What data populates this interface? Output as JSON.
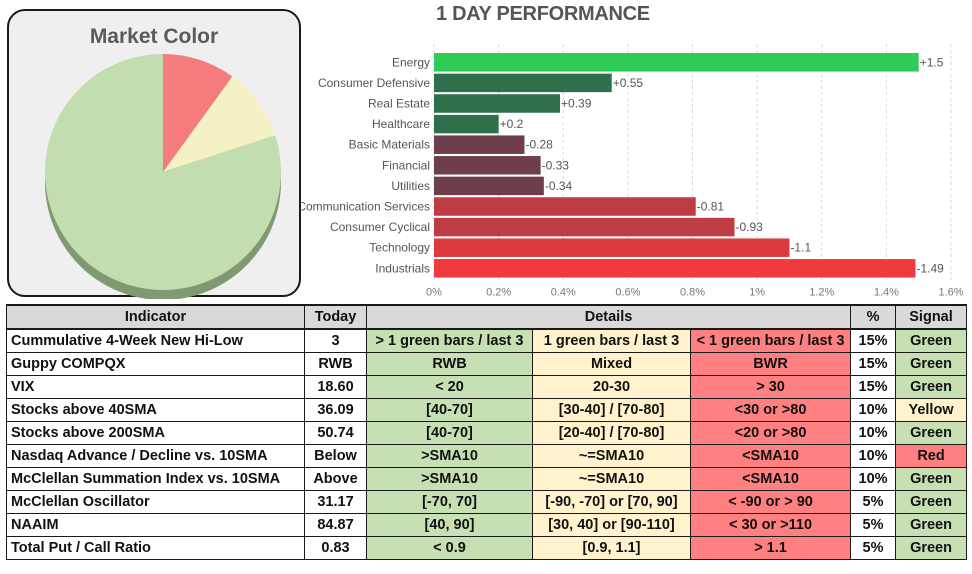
{
  "pie": {
    "title": "Market Color",
    "chart_data": {
      "type": "pie",
      "title": "Market Color",
      "slices": [
        {
          "name": "Red",
          "value": 10,
          "color": "#f47c7c"
        },
        {
          "name": "Yellow",
          "value": 10,
          "color": "#f4f2c4"
        },
        {
          "name": "Green",
          "value": 80,
          "color": "#c2ddb0"
        }
      ]
    }
  },
  "chart_data": {
    "type": "bar",
    "orientation": "horizontal",
    "title": "1 DAY PERFORMANCE",
    "categories": [
      "Energy",
      "Consumer Defensive",
      "Real Estate",
      "Healthcare",
      "Basic Materials",
      "Financial",
      "Utilities",
      "Communication Services",
      "Consumer Cyclical",
      "Technology",
      "Industrials"
    ],
    "values": [
      1.5,
      0.55,
      0.39,
      0.2,
      -0.28,
      -0.33,
      -0.34,
      -0.81,
      -0.93,
      -1.1,
      -1.49
    ],
    "value_labels": [
      "+1.5",
      "+0.55",
      "+0.39",
      "+0.2",
      "-0.28",
      "-0.33",
      "-0.34",
      "-0.81",
      "-0.93",
      "-1.1",
      "-1.49"
    ],
    "colors": [
      "#2ecc55",
      "#2e6f4c",
      "#2e6f4c",
      "#2e6f4c",
      "#6e3f4a",
      "#6e3f4a",
      "#6e3f4a",
      "#bf3c44",
      "#bf3c44",
      "#dc3a3f",
      "#f03a3d"
    ],
    "xaxis_ticks": [
      "0%",
      "0.2%",
      "0.4%",
      "0.6%",
      "0.8%",
      "1%",
      "1.2%",
      "1.4%",
      "1.6%"
    ],
    "xlim": [
      0,
      1.6
    ],
    "grid": true
  },
  "table": {
    "headers": {
      "indicator": "Indicator",
      "today": "Today",
      "details": "Details",
      "pct": "%",
      "signal": "Signal"
    },
    "rows": [
      {
        "indicator": "Cummulative 4-Week New Hi-Low",
        "today": "3",
        "green": "> 1 green bars / last 3",
        "yellow": "1 green bars / last 3",
        "red": "< 1 green bars / last 3",
        "pct": "15%",
        "signal": "Green"
      },
      {
        "indicator": "Guppy COMPQX",
        "today": "RWB",
        "green": "RWB",
        "yellow": "Mixed",
        "red": "BWR",
        "pct": "15%",
        "signal": "Green"
      },
      {
        "indicator": "VIX",
        "today": "18.60",
        "green": "< 20",
        "yellow": "20-30",
        "red": "> 30",
        "pct": "15%",
        "signal": "Green"
      },
      {
        "indicator": "Stocks above 40SMA",
        "today": "36.09",
        "green": "[40-70]",
        "yellow": "[30-40] / [70-80]",
        "red": "<30 or >80",
        "pct": "10%",
        "signal": "Yellow"
      },
      {
        "indicator": "Stocks above 200SMA",
        "today": "50.74",
        "green": "[40-70]",
        "yellow": "[20-40] / [70-80]",
        "red": "<20 or >80",
        "pct": "10%",
        "signal": "Green"
      },
      {
        "indicator": "Nasdaq Advance / Decline vs. 10SMA",
        "today": "Below",
        "green": ">SMA10",
        "yellow": "~=SMA10",
        "red": "<SMA10",
        "pct": "10%",
        "signal": "Red"
      },
      {
        "indicator": "McClellan Summation Index vs. 10SMA",
        "today": "Above",
        "green": ">SMA10",
        "yellow": "~=SMA10",
        "red": "<SMA10",
        "pct": "10%",
        "signal": "Green"
      },
      {
        "indicator": "McClellan Oscillator",
        "today": "31.17",
        "green": "[-70, 70]",
        "yellow": "[-90, -70] or [70, 90]",
        "red": "< -90 or > 90",
        "pct": "5%",
        "signal": "Green"
      },
      {
        "indicator": "NAAIM",
        "today": "84.87",
        "green": "[40, 90]",
        "yellow": "[30, 40] or [90-110]",
        "red": "< 30 or >110",
        "pct": "5%",
        "signal": "Green"
      },
      {
        "indicator": "Total Put / Call Ratio",
        "today": "0.83",
        "green": "< 0.9",
        "yellow": "[0.9, 1.1]",
        "red": "> 1.1",
        "pct": "5%",
        "signal": "Green"
      }
    ]
  }
}
